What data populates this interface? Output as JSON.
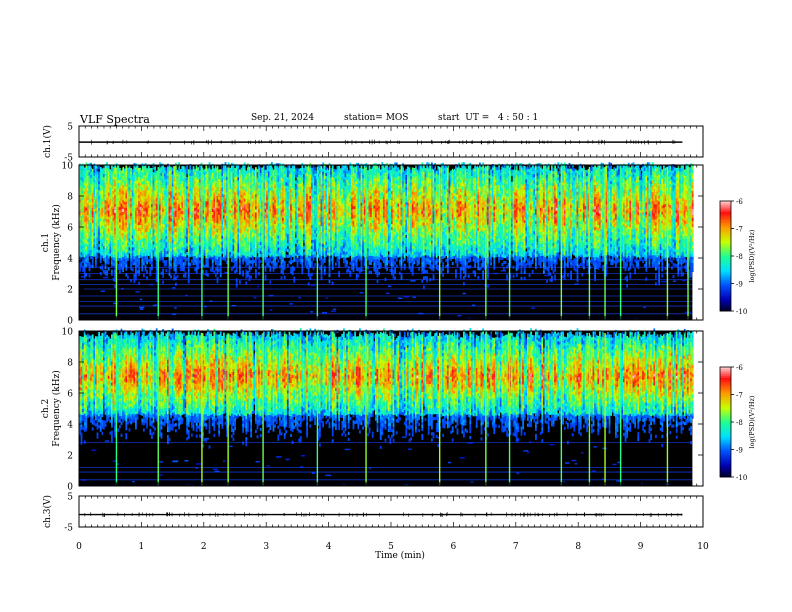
{
  "header": {
    "title": "VLF Spectra",
    "date": "Sep. 21, 2024",
    "station": "station= MOS",
    "start_ut": "start  UT =   4 : 50 : 1"
  },
  "colors": {
    "colormap": [
      "#000000",
      "#0000b4",
      "#0050ff",
      "#00e0ff",
      "#20ff90",
      "#c8ff00",
      "#ff9a00",
      "#ff1010",
      "#ffffff"
    ],
    "background_dark": "#000000"
  },
  "chart_data": [
    {
      "type": "line",
      "panel": "ch1-voltage",
      "ylabel": "ch.1(V)",
      "yticks": [
        "5",
        "-5"
      ],
      "ylim": [
        -5,
        5
      ],
      "xlim": [
        0,
        10
      ],
      "series": [
        {
          "values_approx": -0.2
        }
      ]
    },
    {
      "type": "heatmap",
      "panel": "ch1-spectrogram",
      "ylabel": "ch.1\nFrequency (kHz)",
      "yticks": [
        "0",
        "2",
        "4",
        "6",
        "8",
        "10"
      ],
      "ylim": [
        0,
        10
      ],
      "xlim": [
        0,
        9.83
      ],
      "colorbar": {
        "label": "log(PSD)(V²/Hz)",
        "ticks": [
          "-6",
          "-7",
          "-8",
          "-9",
          "-10"
        ],
        "range": [
          -10,
          -6
        ]
      },
      "band_kHz": {
        "strong_low": 4.0,
        "strong_high": 9.6,
        "peak": 7.0
      },
      "vertical_spikes_min": [
        0.6,
        1.27,
        1.97,
        2.39,
        2.95,
        3.82,
        4.6,
        5.78,
        6.52,
        6.9,
        7.73,
        8.18,
        8.43,
        8.68,
        9.43,
        9.76
      ],
      "horizontal_lines_kHz": [
        0.4,
        0.9,
        1.2,
        1.55,
        2.0,
        2.3,
        2.6,
        3.0,
        3.4
      ]
    },
    {
      "type": "heatmap",
      "panel": "ch2-spectrogram",
      "ylabel": "ch.2\nFrequency (kHz)",
      "yticks": [
        "0",
        "2",
        "4",
        "6",
        "8",
        "10"
      ],
      "ylim": [
        0,
        10
      ],
      "xlim": [
        0,
        9.83
      ],
      "colorbar": {
        "label": "log(PSD)(V²/Hz)",
        "ticks": [
          "-6",
          "-7",
          "-8",
          "-9",
          "-10"
        ],
        "range": [
          -10,
          -6
        ]
      },
      "band_kHz": {
        "strong_low": 4.5,
        "strong_high": 9.5,
        "peak": 7.0
      },
      "vertical_spikes_min": [
        0.6,
        1.27,
        1.97,
        2.39,
        2.95,
        3.82,
        4.6,
        5.78,
        6.52,
        6.9,
        7.73,
        8.18,
        8.43,
        8.68,
        9.43
      ],
      "horizontal_lines_kHz": [
        0.4,
        0.9,
        1.2,
        2.8
      ]
    },
    {
      "type": "line",
      "panel": "ch3-voltage",
      "ylabel": "ch.3(V)",
      "yticks": [
        "5",
        "-5"
      ],
      "ylim": [
        -5,
        5
      ],
      "xlim": [
        0,
        10
      ],
      "series": [
        {
          "values_approx": -1.0
        }
      ]
    }
  ],
  "xaxis": {
    "label": "Time (min)",
    "ticks": [
      "0",
      "1",
      "2",
      "3",
      "4",
      "5",
      "6",
      "7",
      "8",
      "9",
      "10"
    ],
    "range": [
      0,
      10
    ]
  }
}
